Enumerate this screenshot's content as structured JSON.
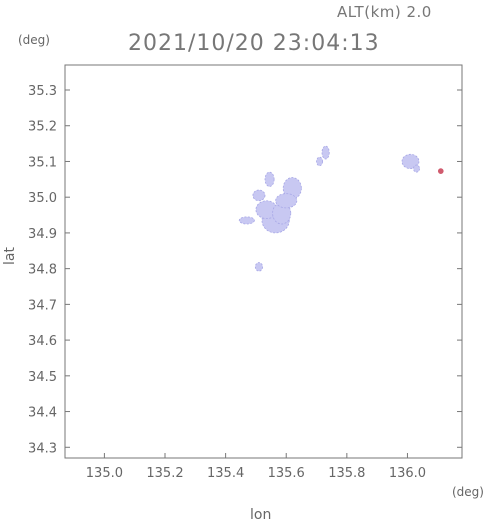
{
  "header": {
    "altitude_label": "ALT(km) 2.0",
    "timestamp": "2021/10/20 23:04:13"
  },
  "axes": {
    "x_label": "lon",
    "y_label": "lat",
    "x_unit": "(deg)",
    "y_unit": "(deg)"
  },
  "chart_data": {
    "type": "heatmap",
    "xlim": [
      134.87,
      136.18
    ],
    "ylim": [
      34.27,
      35.37
    ],
    "x_ticks": [
      135.0,
      135.2,
      135.4,
      135.6,
      135.8,
      136.0
    ],
    "x_tick_labels": [
      "135.0",
      "135.2",
      "135.4",
      "135.6",
      "135.8",
      "136.0"
    ],
    "y_ticks": [
      34.3,
      34.4,
      34.5,
      34.6,
      34.7,
      34.8,
      34.9,
      35.0,
      35.1,
      35.2,
      35.3
    ],
    "y_tick_labels": [
      "34.3",
      "34.4",
      "34.5",
      "34.6",
      "34.7",
      "34.8",
      "34.9",
      "35.0",
      "35.1",
      "35.2",
      "35.3"
    ],
    "grid": false,
    "colors": {
      "weak_echo": "#c8c8f2",
      "weak_echo_edge": "#a7a7e6",
      "strong_echo": "#d05b6e"
    },
    "echo_regions": [
      {
        "level": "weak",
        "lon": 135.565,
        "lat": 34.935,
        "rlon": 0.045,
        "rlat": 0.035
      },
      {
        "level": "weak",
        "lon": 135.535,
        "lat": 34.965,
        "rlon": 0.035,
        "rlat": 0.025
      },
      {
        "level": "weak",
        "lon": 135.585,
        "lat": 34.955,
        "rlon": 0.03,
        "rlat": 0.03
      },
      {
        "level": "weak",
        "lon": 135.62,
        "lat": 35.025,
        "rlon": 0.03,
        "rlat": 0.03
      },
      {
        "level": "weak",
        "lon": 135.6,
        "lat": 34.99,
        "rlon": 0.035,
        "rlat": 0.02
      },
      {
        "level": "weak",
        "lon": 135.51,
        "lat": 35.005,
        "rlon": 0.02,
        "rlat": 0.015
      },
      {
        "level": "weak",
        "lon": 135.47,
        "lat": 34.935,
        "rlon": 0.025,
        "rlat": 0.01
      },
      {
        "level": "weak",
        "lon": 135.545,
        "lat": 35.05,
        "rlon": 0.015,
        "rlat": 0.02
      },
      {
        "level": "weak",
        "lon": 135.51,
        "lat": 34.805,
        "rlon": 0.012,
        "rlat": 0.012
      },
      {
        "level": "weak",
        "lon": 135.73,
        "lat": 35.125,
        "rlon": 0.012,
        "rlat": 0.018
      },
      {
        "level": "weak",
        "lon": 135.71,
        "lat": 35.1,
        "rlon": 0.01,
        "rlat": 0.012
      },
      {
        "level": "weak",
        "lon": 136.01,
        "lat": 35.1,
        "rlon": 0.028,
        "rlat": 0.02
      },
      {
        "level": "weak",
        "lon": 136.03,
        "lat": 35.08,
        "rlon": 0.01,
        "rlat": 0.01
      },
      {
        "level": "strong",
        "lon": 136.11,
        "lat": 35.073,
        "rlon": 0.008,
        "rlat": 0.007
      }
    ]
  }
}
